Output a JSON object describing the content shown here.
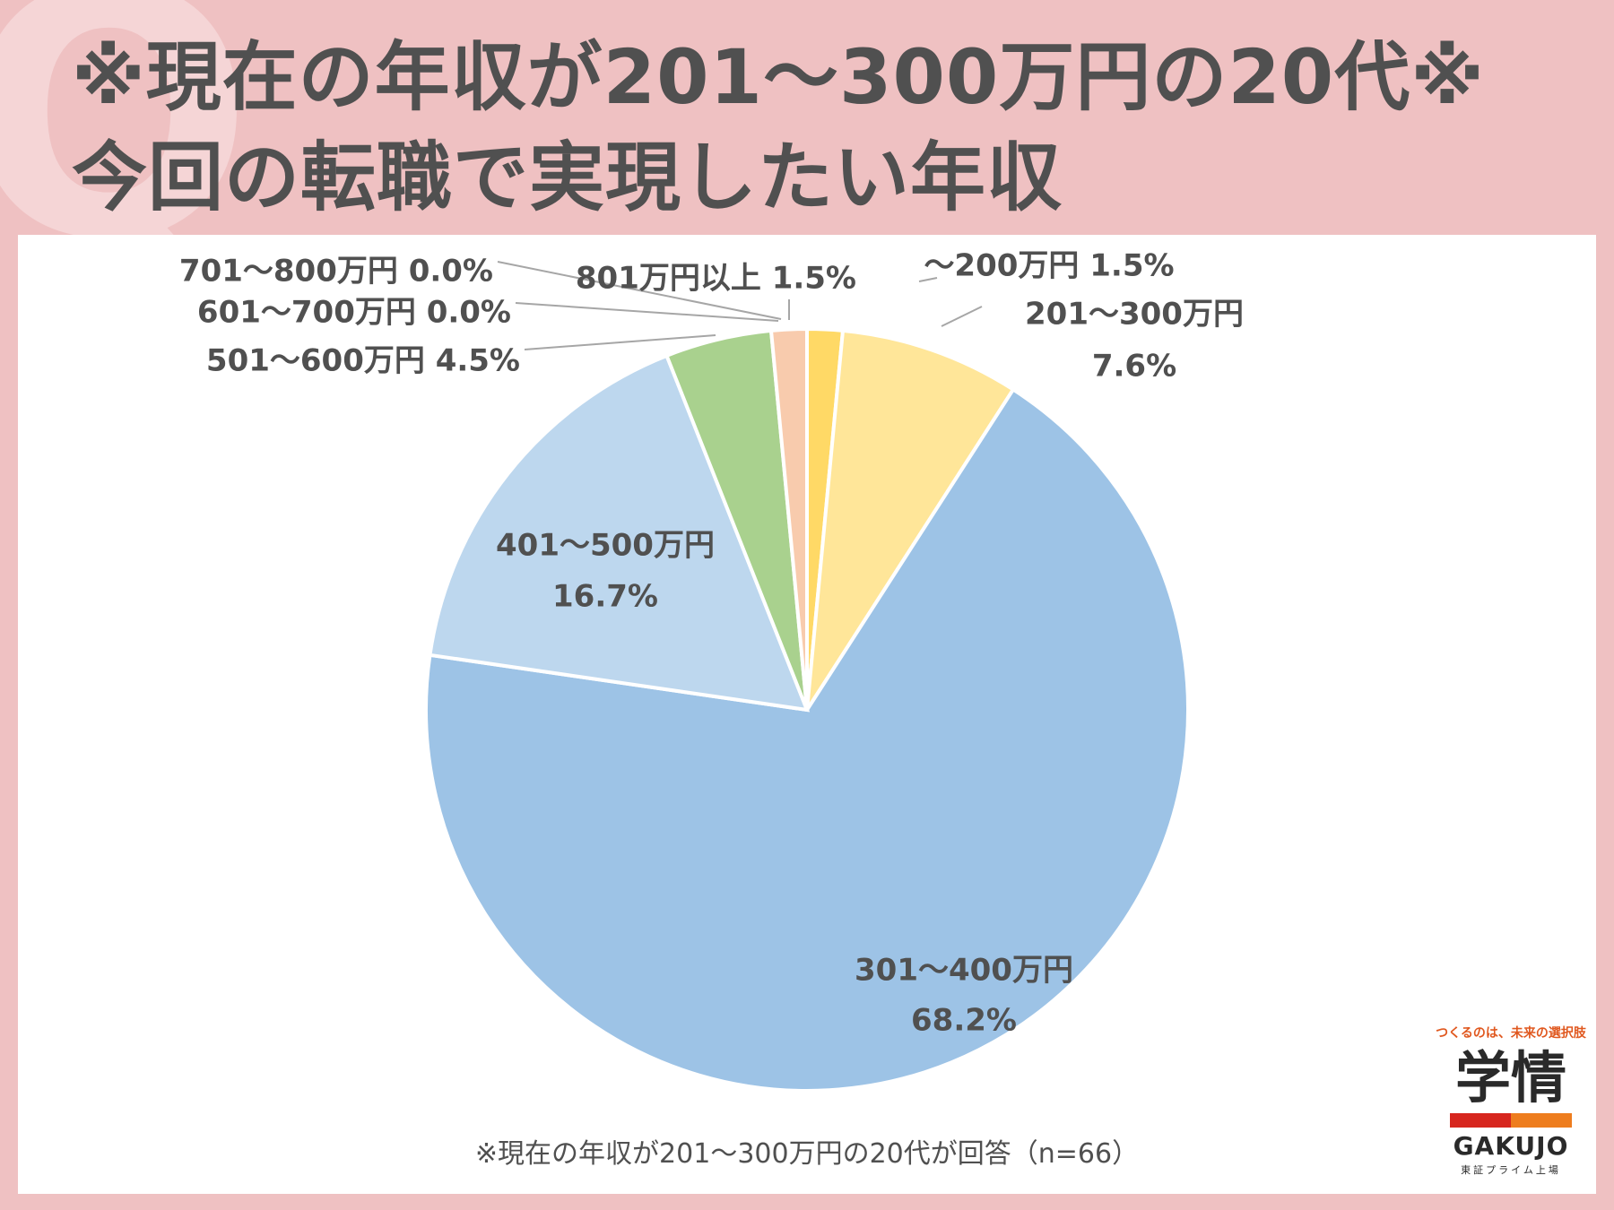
{
  "header": {
    "title_line1": "※現在の年収が201～300万円の20代※",
    "title_line2": "今回の転職で実現したい年収"
  },
  "footnote": "※現在の年収が201～300万円の20代が回答（n=66）",
  "logo": {
    "tagline": "つくるのは、未来の選択肢",
    "name_ja": "学情",
    "name_en": "GAKUJO",
    "sub": "東証プライム上場"
  },
  "colors": {
    "background": "#efc1c2",
    "title": "#505050"
  },
  "chart_data": {
    "type": "pie",
    "title": "",
    "slices": [
      {
        "label": "～200万円",
        "value": 1.5,
        "value_text": "1.5%",
        "color": "#ffd966"
      },
      {
        "label": "201～300万円",
        "value": 7.6,
        "value_text": "7.6%",
        "color": "#ffe699"
      },
      {
        "label": "301～400万円",
        "value": 68.2,
        "value_text": "68.2%",
        "color": "#9dc3e6"
      },
      {
        "label": "401～500万円",
        "value": 16.7,
        "value_text": "16.7%",
        "color": "#bdd7ee"
      },
      {
        "label": "501～600万円",
        "value": 4.5,
        "value_text": "4.5%",
        "color": "#a9d18e"
      },
      {
        "label": "601～700万円",
        "value": 0.0,
        "value_text": "0.0%",
        "color": "#c5e0b4"
      },
      {
        "label": "701～800万円",
        "value": 0.0,
        "value_text": "0.0%",
        "color": "#f4b183"
      },
      {
        "label": "801万円以上",
        "value": 1.5,
        "value_text": "1.5%",
        "color": "#f8cbad"
      }
    ]
  }
}
